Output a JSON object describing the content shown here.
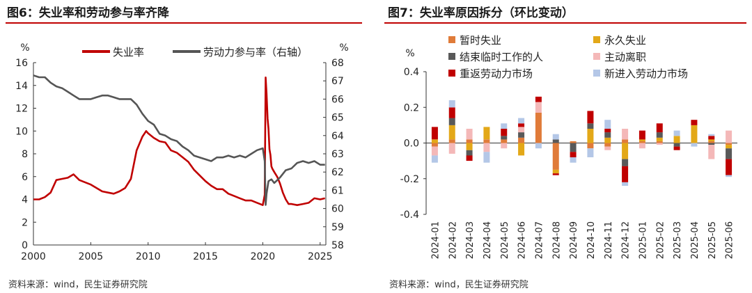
{
  "colors": {
    "accent": "#c00000",
    "unemployment": "#c00000",
    "participation": "#555555",
    "temporary": "#e07b39",
    "permanent": "#e3a818",
    "end_temp": "#595959",
    "quit": "#f4b8b8",
    "reentrant": "#c00000",
    "new_entrant": "#b4c7e7"
  },
  "left": {
    "title": "图6：失业率和劳动参与率齐降",
    "source": "资料来源：wind，民生证券研究院",
    "chart_data": {
      "type": "line",
      "title": "图6：失业率和劳动参与率齐降",
      "left_axis_unit": "%",
      "right_axis_unit": "%",
      "left_ylim": [
        0,
        16
      ],
      "right_ylim": [
        58,
        68
      ],
      "xlim": [
        2000,
        2025.5
      ],
      "x_ticks": [
        2000,
        2005,
        2010,
        2015,
        2020,
        2025
      ],
      "left_y_ticks": [
        0,
        2,
        4,
        6,
        8,
        10,
        12,
        14,
        16
      ],
      "right_y_ticks": [
        58,
        59,
        60,
        61,
        62,
        63,
        64,
        65,
        66,
        67,
        68
      ],
      "legend_position": "top",
      "grid": false,
      "series": [
        {
          "name": "失业率",
          "axis": "left",
          "x": [
            2000.0,
            2000.5,
            2001.0,
            2001.5,
            2002.0,
            2002.5,
            2003.0,
            2003.5,
            2004.0,
            2004.5,
            2005.0,
            2005.5,
            2006.0,
            2006.5,
            2007.0,
            2007.5,
            2008.0,
            2008.5,
            2009.0,
            2009.5,
            2009.83,
            2010.0,
            2010.5,
            2011.0,
            2011.5,
            2012.0,
            2012.5,
            2013.0,
            2013.5,
            2014.0,
            2014.5,
            2015.0,
            2015.5,
            2016.0,
            2016.5,
            2017.0,
            2017.5,
            2018.0,
            2018.5,
            2019.0,
            2019.5,
            2020.0,
            2020.17,
            2020.25,
            2020.33,
            2020.42,
            2020.5,
            2020.58,
            2020.67,
            2020.75,
            2020.83,
            2021.0,
            2021.25,
            2021.5,
            2021.75,
            2022.0,
            2022.25,
            2022.5,
            2023.0,
            2023.5,
            2024.0,
            2024.5,
            2025.0,
            2025.42
          ],
          "y": [
            4.0,
            4.0,
            4.2,
            4.6,
            5.7,
            5.8,
            5.9,
            6.2,
            5.7,
            5.5,
            5.3,
            5.0,
            4.7,
            4.6,
            4.5,
            4.7,
            5.0,
            5.8,
            8.3,
            9.5,
            10.0,
            9.8,
            9.4,
            9.1,
            9.0,
            8.3,
            8.1,
            7.7,
            7.3,
            6.6,
            6.1,
            5.6,
            5.2,
            4.9,
            4.9,
            4.5,
            4.3,
            4.1,
            3.9,
            3.9,
            3.7,
            3.5,
            4.4,
            14.7,
            13.3,
            11.1,
            10.2,
            8.4,
            7.9,
            6.9,
            6.7,
            6.4,
            6.0,
            5.4,
            4.6,
            4.0,
            3.6,
            3.6,
            3.5,
            3.6,
            3.7,
            4.1,
            4.0,
            4.1
          ]
        },
        {
          "name": "劳动力参与率（右轴）",
          "axis": "right",
          "x": [
            2000.0,
            2000.5,
            2001.0,
            2001.5,
            2002.0,
            2002.5,
            2003.0,
            2003.5,
            2004.0,
            2004.5,
            2005.0,
            2005.5,
            2006.0,
            2006.5,
            2007.0,
            2007.5,
            2008.0,
            2008.5,
            2009.0,
            2009.5,
            2010.0,
            2010.5,
            2011.0,
            2011.5,
            2012.0,
            2012.5,
            2013.0,
            2013.5,
            2014.0,
            2014.5,
            2015.0,
            2015.5,
            2016.0,
            2016.5,
            2017.0,
            2017.5,
            2018.0,
            2018.5,
            2019.0,
            2019.5,
            2020.0,
            2020.17,
            2020.25,
            2020.33,
            2020.5,
            2020.75,
            2021.0,
            2021.5,
            2022.0,
            2022.5,
            2023.0,
            2023.5,
            2024.0,
            2024.5,
            2025.0,
            2025.42
          ],
          "y": [
            67.3,
            67.2,
            67.2,
            66.9,
            66.7,
            66.6,
            66.4,
            66.2,
            66.0,
            66.0,
            66.0,
            66.1,
            66.2,
            66.2,
            66.1,
            66.0,
            66.0,
            66.0,
            65.7,
            65.2,
            64.8,
            64.6,
            64.1,
            64.0,
            63.8,
            63.7,
            63.4,
            63.2,
            62.9,
            62.8,
            62.7,
            62.6,
            62.8,
            62.8,
            62.9,
            62.8,
            62.9,
            62.8,
            63.0,
            63.2,
            63.3,
            62.6,
            60.2,
            60.8,
            61.5,
            61.6,
            61.4,
            61.7,
            62.1,
            62.2,
            62.5,
            62.6,
            62.5,
            62.6,
            62.4,
            62.4
          ]
        }
      ]
    }
  },
  "right": {
    "title": "图7：失业率原因拆分（环比变动）",
    "source": "资料来源：wind，民生证券研究院",
    "chart_data": {
      "type": "bar",
      "stacked": true,
      "title": "图7：失业率原因拆分（环比变动）",
      "y_unit": "%",
      "ylim": [
        -0.4,
        0.4
      ],
      "y_ticks": [
        -0.4,
        -0.2,
        0.0,
        0.2,
        0.4
      ],
      "legend_position": "top",
      "grid": false,
      "categories": [
        "2024-01",
        "2024-02",
        "2024-03",
        "2024-04",
        "2024-05",
        "2024-06",
        "2024-07",
        "2024-08",
        "2024-09",
        "2024-10",
        "2024-11",
        "2024-12",
        "2025-01",
        "2025-02",
        "2025-03",
        "2025-04",
        "2025-05",
        "2025-06"
      ],
      "series": [
        {
          "name": "暂时失业",
          "values": [
            -0.02,
            0.02,
            0.02,
            0.02,
            0.02,
            0.03,
            0.17,
            -0.15,
            0.01,
            -0.03,
            -0.02,
            0.02,
            0.01,
            0.01,
            0.0,
            0.0,
            0.01,
            -0.01
          ]
        },
        {
          "name": "永久失业",
          "values": [
            0.02,
            0.08,
            -0.04,
            0.07,
            0.0,
            -0.07,
            0.0,
            -0.02,
            0.0,
            0.08,
            0.03,
            -0.09,
            0.01,
            0.02,
            0.04,
            0.1,
            0.01,
            -0.02
          ]
        },
        {
          "name": "结束临时工作的人",
          "values": [
            0.0,
            0.04,
            -0.03,
            0.0,
            0.02,
            0.03,
            0.0,
            0.02,
            -0.05,
            0.03,
            0.03,
            -0.04,
            0.0,
            0.03,
            -0.02,
            0.0,
            -0.01,
            -0.06
          ]
        },
        {
          "name": "主动离职",
          "values": [
            -0.05,
            -0.06,
            0.06,
            -0.05,
            -0.03,
            0.03,
            0.06,
            0.0,
            0.0,
            0.0,
            -0.02,
            0.06,
            -0.03,
            -0.01,
            0.0,
            0.0,
            -0.08,
            0.07
          ]
        },
        {
          "name": "重返劳动力市场",
          "values": [
            0.07,
            0.06,
            -0.03,
            0.0,
            0.04,
            0.02,
            0.03,
            -0.01,
            -0.03,
            0.07,
            0.02,
            -0.09,
            0.05,
            0.05,
            -0.02,
            0.03,
            0.02,
            -0.09
          ]
        },
        {
          "name": "新进入劳动力市场",
          "values": [
            -0.04,
            0.04,
            0.0,
            -0.06,
            0.03,
            0.03,
            -0.03,
            0.03,
            -0.03,
            -0.05,
            0.05,
            -0.02,
            0.0,
            0.0,
            0.03,
            -0.02,
            0.01,
            -0.01
          ]
        }
      ]
    }
  }
}
